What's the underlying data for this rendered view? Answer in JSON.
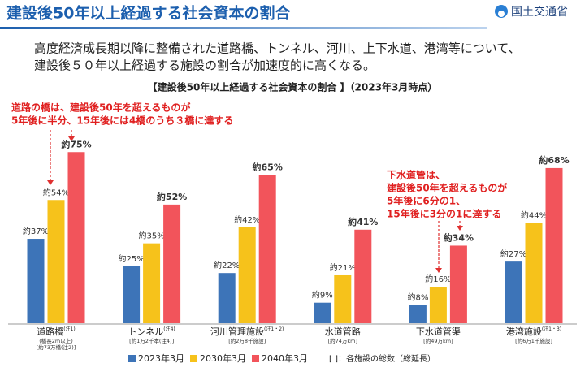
{
  "header": {
    "title": "建設後50年以上経過する社会資本の割合",
    "logo": "国土交通省"
  },
  "description": [
    "高度経済成長期以降に整備された道路橋、トンネル、河川、上下水道、港湾等について、",
    "建設後５０年以上経過する施設の割合が加速度的に高くなる。"
  ],
  "chart_data": {
    "type": "bar",
    "title": "【建設後50年以上経過する社会資本の割合 】（2023年3月時点）",
    "categories": [
      "道路橋",
      "トンネル",
      "河川管理施設",
      "水道管路",
      "下水道管渠",
      "港湾施設"
    ],
    "category_notes": [
      "(注1)",
      "(注4)",
      "(注1・2)",
      null,
      null,
      "(注1・3)"
    ],
    "category_details": [
      [
        "(橋長2m以上)",
        "[約73万橋(注2)]"
      ],
      [
        "[約1万2千本(注4)]"
      ],
      [
        "[約2万8千施設]"
      ],
      [
        "[約74万km]"
      ],
      [
        "[約49万km]"
      ],
      [
        "[約6万1千施設]"
      ]
    ],
    "series": [
      {
        "name": "2023年3月",
        "color": "#3d74b8",
        "values": [
          37,
          25,
          22,
          9,
          8,
          27
        ],
        "value_labels": [
          "約37%",
          "約25%",
          "約22%",
          "約9%",
          "約8%",
          "約27%"
        ]
      },
      {
        "name": "2030年3月",
        "color": "#f6c21b",
        "values": [
          54,
          35,
          42,
          21,
          16,
          44
        ],
        "value_labels": [
          "約54%",
          "約35%",
          "約42%",
          "約21%",
          "約16%",
          "約44%"
        ]
      },
      {
        "name": "2040年3月",
        "color": "#f2545b",
        "values": [
          75,
          52,
          65,
          41,
          34,
          68
        ],
        "value_labels": [
          "約75%",
          "約52%",
          "約65%",
          "約41%",
          "約34%",
          "約68%"
        ]
      }
    ],
    "annotations": [
      [
        "道路の橋は、建設後50年を超えるものが",
        "5年後に半分、15年後には4橋のうち３橋に達する"
      ],
      [
        "下水道管は、",
        "建設後50年を超えるものが",
        "5年後に6分の1、",
        "15年後に3分の1に達する"
      ]
    ],
    "footnote": "[ ]：各施設の総数（総延長）"
  }
}
